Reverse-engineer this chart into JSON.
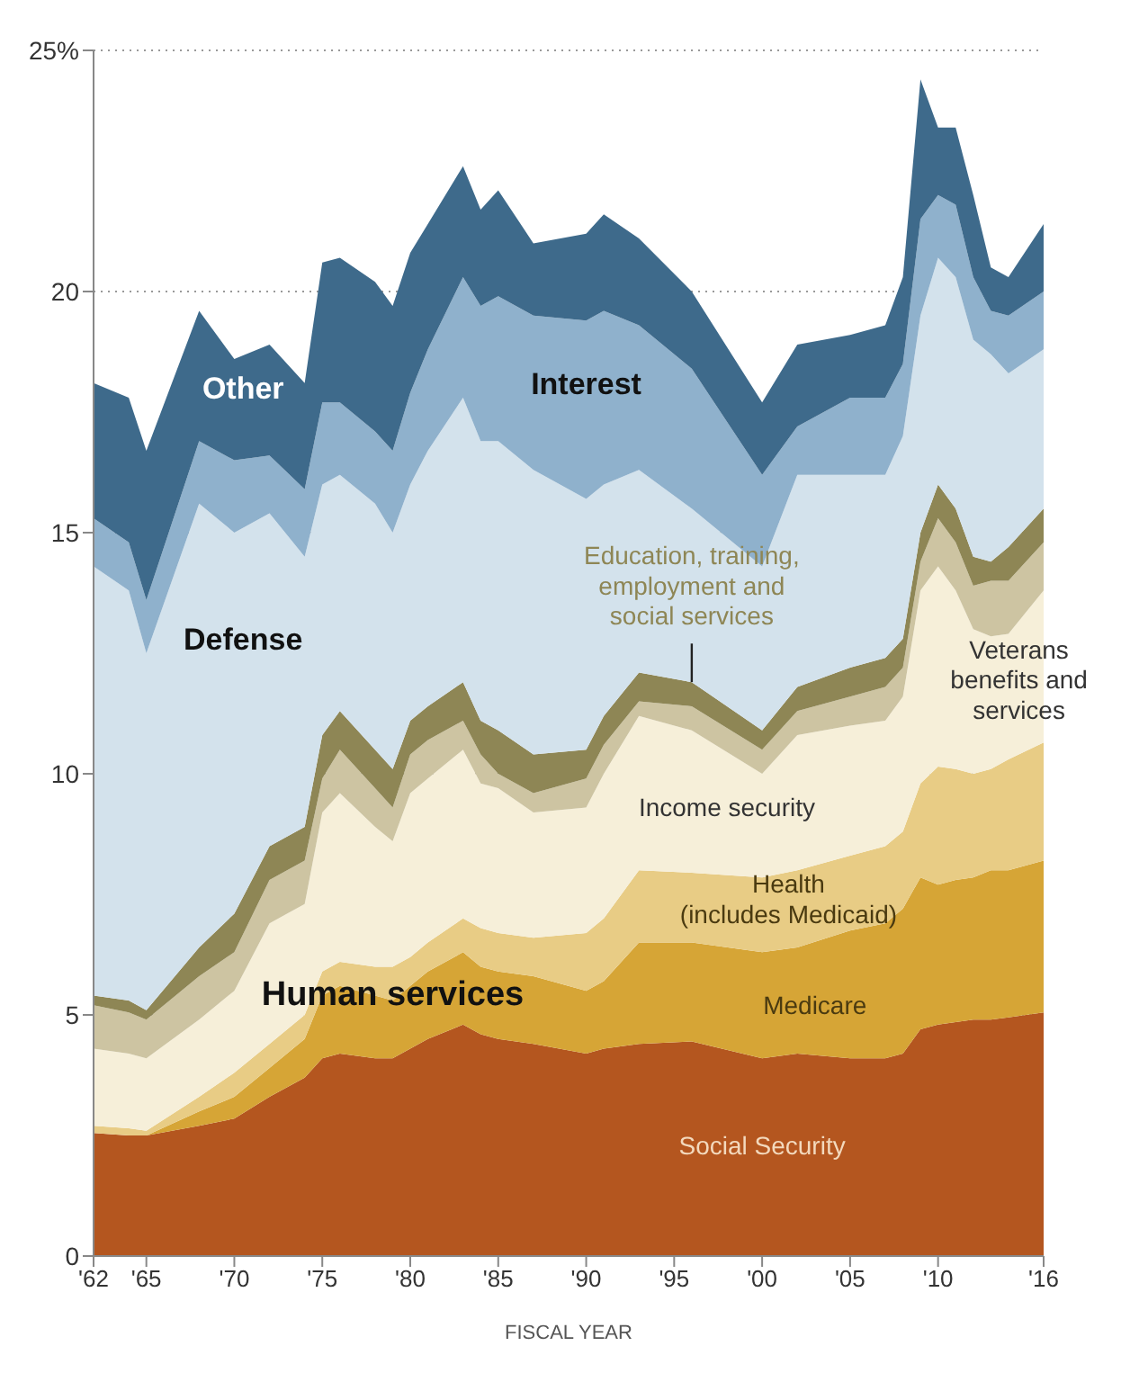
{
  "chart_data": {
    "type": "area",
    "stacked": true,
    "xlabel": "FISCAL YEAR",
    "grid": "y",
    "annotations": [
      "Human services"
    ],
    "x": [
      1962,
      1964,
      1965,
      1968,
      1970,
      1972,
      1974,
      1975,
      1976,
      1978,
      1979,
      1980,
      1981,
      1983,
      1984,
      1985,
      1987,
      1990,
      1991,
      1993,
      1996,
      2000,
      2002,
      2005,
      2007,
      2008,
      2009,
      2010,
      2011,
      2012,
      2013,
      2014,
      2016
    ],
    "xlim": [
      1962,
      2016
    ],
    "xticks": [
      {
        "value": 1962,
        "label": "'62"
      },
      {
        "value": 1965,
        "label": "'65"
      },
      {
        "value": 1970,
        "label": "'70"
      },
      {
        "value": 1975,
        "label": "'75"
      },
      {
        "value": 1980,
        "label": "'80"
      },
      {
        "value": 1985,
        "label": "'85"
      },
      {
        "value": 1990,
        "label": "'90"
      },
      {
        "value": 1995,
        "label": "'95"
      },
      {
        "value": 2000,
        "label": "'00"
      },
      {
        "value": 2005,
        "label": "'05"
      },
      {
        "value": 2010,
        "label": "'10"
      },
      {
        "value": 2016,
        "label": "'16"
      }
    ],
    "ylim": [
      0,
      25
    ],
    "yticks": [
      0,
      5,
      10,
      15,
      20,
      {
        "value": 25,
        "label": "25%"
      }
    ],
    "series": [
      {
        "name": "Social Security",
        "color": "#b4561f",
        "values": [
          2.55,
          2.5,
          2.5,
          2.7,
          2.85,
          3.3,
          3.7,
          4.1,
          4.2,
          4.1,
          4.1,
          4.3,
          4.5,
          4.8,
          4.6,
          4.5,
          4.4,
          4.2,
          4.3,
          4.4,
          4.45,
          4.1,
          4.2,
          4.1,
          4.1,
          4.2,
          4.7,
          4.8,
          4.85,
          4.9,
          4.9,
          4.95,
          5.05
        ]
      },
      {
        "name": "Medicare",
        "color": "#d6a536",
        "values": [
          0,
          0,
          0,
          0.3,
          0.45,
          0.6,
          0.8,
          1.3,
          1.4,
          1.3,
          1.2,
          1.3,
          1.4,
          1.5,
          1.4,
          1.4,
          1.4,
          1.3,
          1.4,
          2.1,
          2.05,
          2.2,
          2.2,
          2.65,
          2.8,
          3.0,
          3.15,
          2.9,
          2.95,
          2.95,
          3.1,
          3.05,
          3.15
        ]
      },
      {
        "name": "Health (includes Medicaid)",
        "color": "#e8cc85",
        "values": [
          0.15,
          0.15,
          0.1,
          0.3,
          0.5,
          0.5,
          0.5,
          0.5,
          0.5,
          0.6,
          0.7,
          0.6,
          0.6,
          0.7,
          0.8,
          0.8,
          0.8,
          1.2,
          1.3,
          1.5,
          1.45,
          1.55,
          1.6,
          1.55,
          1.6,
          1.6,
          1.95,
          2.45,
          2.3,
          2.15,
          2.1,
          2.3,
          2.45
        ]
      },
      {
        "name": "Income security",
        "color": "#f6efd9",
        "values": [
          1.6,
          1.55,
          1.5,
          1.6,
          1.7,
          2.5,
          2.3,
          3.3,
          3.5,
          2.9,
          2.6,
          3.4,
          3.4,
          3.5,
          3.0,
          3.0,
          2.6,
          2.6,
          3.0,
          3.2,
          2.95,
          2.15,
          2.8,
          2.7,
          2.6,
          2.8,
          4.0,
          4.15,
          3.7,
          3.0,
          2.75,
          2.6,
          3.15
        ]
      },
      {
        "name": "Veterans benefits and services",
        "color": "#cdc4a2",
        "values": [
          0.9,
          0.85,
          0.8,
          0.9,
          0.8,
          0.9,
          0.9,
          0.7,
          0.9,
          0.8,
          0.7,
          0.8,
          0.8,
          0.6,
          0.6,
          0.3,
          0.4,
          0.6,
          0.6,
          0.3,
          0.5,
          0.5,
          0.5,
          0.6,
          0.7,
          0.6,
          0.6,
          1.0,
          1.0,
          0.9,
          1.15,
          1.1,
          1.0
        ]
      },
      {
        "name": "Education, training, employment and social services",
        "color": "#8e8655",
        "values": [
          0.2,
          0.25,
          0.2,
          0.6,
          0.8,
          0.7,
          0.7,
          0.9,
          0.8,
          0.8,
          0.8,
          0.7,
          0.7,
          0.8,
          0.7,
          0.9,
          0.8,
          0.6,
          0.6,
          0.6,
          0.5,
          0.4,
          0.5,
          0.6,
          0.6,
          0.6,
          0.6,
          0.7,
          0.7,
          0.6,
          0.4,
          0.7,
          0.7
        ]
      },
      {
        "name": "Defense",
        "color": "#d3e2ec",
        "values": [
          8.9,
          8.5,
          7.4,
          9.2,
          7.9,
          6.9,
          5.6,
          5.2,
          4.9,
          5.1,
          4.9,
          4.9,
          5.3,
          5.9,
          5.8,
          6.0,
          5.9,
          5.2,
          4.8,
          4.2,
          3.6,
          3.4,
          4.4,
          4.0,
          3.8,
          4.2,
          4.5,
          4.7,
          4.8,
          4.5,
          4.3,
          3.6,
          3.3
        ]
      },
      {
        "name": "Interest",
        "color": "#8fb1cc",
        "values": [
          1.0,
          1.0,
          1.1,
          1.3,
          1.5,
          1.2,
          1.4,
          1.7,
          1.5,
          1.5,
          1.7,
          1.9,
          2.1,
          2.5,
          2.8,
          3.0,
          3.2,
          3.7,
          3.6,
          3.0,
          2.9,
          1.9,
          1.0,
          1.6,
          1.6,
          1.5,
          2.0,
          1.3,
          1.5,
          1.3,
          0.9,
          1.2,
          1.2
        ]
      },
      {
        "name": "Other",
        "color": "#3e6a8b",
        "values": [
          2.8,
          3.0,
          3.1,
          2.7,
          2.1,
          2.3,
          2.2,
          2.9,
          3.0,
          3.1,
          3.0,
          2.9,
          2.6,
          2.3,
          2.0,
          2.2,
          1.5,
          1.8,
          2.0,
          1.8,
          1.6,
          1.5,
          1.7,
          1.3,
          1.5,
          1.8,
          2.9,
          1.4,
          1.6,
          1.7,
          0.9,
          0.8,
          1.4
        ]
      }
    ]
  }
}
